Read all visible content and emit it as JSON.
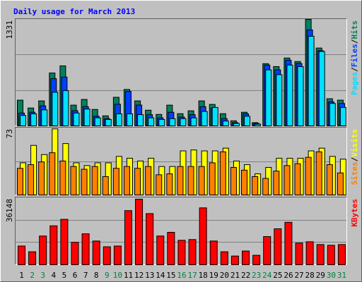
{
  "chart_data": [
    {
      "type": "bar",
      "title": "Daily usage for March 2013",
      "ylim": [
        0,
        1331
      ],
      "yticks": [
        1331
      ],
      "gridlines": [
        443.67,
        887.33
      ],
      "legend_separator": "/",
      "series": [
        {
          "name": "Hits",
          "color": "#00805c",
          "values": [
            321,
            223,
            312,
            661,
            750,
            259,
            330,
            205,
            125,
            357,
            455,
            312,
            196,
            143,
            259,
            152,
            188,
            312,
            268,
            152,
            63,
            170,
            40,
            777,
            741,
            848,
            804,
            1331,
            973,
            339,
            321
          ]
        },
        {
          "name": "Files",
          "color": "#0040ff",
          "values": [
            160,
            170,
            250,
            590,
            610,
            190,
            240,
            120,
            90,
            270,
            430,
            260,
            140,
            100,
            170,
            110,
            140,
            240,
            220,
            90,
            40,
            150,
            30,
            760,
            700,
            820,
            780,
            1200,
            940,
            300,
            280
          ]
        },
        {
          "name": "Pages",
          "color": "#00e0ff",
          "values": [
            130,
            150,
            200,
            420,
            440,
            160,
            210,
            100,
            80,
            150,
            150,
            140,
            100,
            80,
            90,
            90,
            100,
            180,
            230,
            60,
            30,
            120,
            20,
            700,
            640,
            760,
            740,
            1120,
            930,
            280,
            230
          ]
        }
      ]
    },
    {
      "type": "bar",
      "ylim": [
        0,
        73
      ],
      "yticks": [
        73
      ],
      "gridlines": [
        36.5
      ],
      "legend_separator": "/",
      "series": [
        {
          "name": "Visits",
          "color": "#ffff00",
          "values": [
            35,
            54,
            44,
            72,
            56,
            35,
            32,
            35,
            35,
            42,
            40,
            37,
            40,
            31,
            31,
            48,
            49,
            48,
            48,
            51,
            37,
            33,
            23,
            30,
            40,
            40,
            40,
            48,
            51,
            42,
            39
          ]
        },
        {
          "name": "Sites",
          "color": "#ff8000",
          "values": [
            29,
            33,
            36,
            46,
            37,
            31,
            28,
            31,
            20,
            29,
            31,
            29,
            31,
            22,
            23,
            31,
            31,
            31,
            35,
            47,
            30,
            27,
            20,
            18,
            26,
            32,
            34,
            41,
            47,
            33,
            24
          ]
        }
      ]
    },
    {
      "type": "bar",
      "ylim": [
        0,
        36148
      ],
      "yticks": [
        36148
      ],
      "gridlines": [
        12049,
        24099
      ],
      "categories": [
        "1",
        "2",
        "3",
        "4",
        "5",
        "6",
        "7",
        "8",
        "9",
        "10",
        "11",
        "12",
        "13",
        "14",
        "15",
        "16",
        "17",
        "18",
        "19",
        "20",
        "21",
        "22",
        "23",
        "24",
        "25",
        "26",
        "27",
        "28",
        "29",
        "30",
        "31"
      ],
      "category_colors": [
        "#000000",
        "#008040",
        "#008040",
        "#000000",
        "#000000",
        "#000000",
        "#000000",
        "#000000",
        "#008040",
        "#008040",
        "#000000",
        "#000000",
        "#000000",
        "#000000",
        "#000000",
        "#008040",
        "#008040",
        "#000000",
        "#000000",
        "#000000",
        "#000000",
        "#000000",
        "#008040",
        "#008040",
        "#000000",
        "#000000",
        "#000000",
        "#000000",
        "#000000",
        "#008040",
        "#008040"
      ],
      "series": [
        {
          "name": "KBytes",
          "color": "#ff0000",
          "values": [
            10100,
            7000,
            15500,
            21000,
            24500,
            12100,
            16700,
            12800,
            9700,
            10100,
            29200,
            35400,
            27600,
            15500,
            17500,
            13200,
            13600,
            30700,
            12800,
            7000,
            4700,
            7400,
            5100,
            15200,
            19400,
            22900,
            11700,
            12400,
            10900,
            10500,
            10900
          ]
        }
      ]
    }
  ]
}
